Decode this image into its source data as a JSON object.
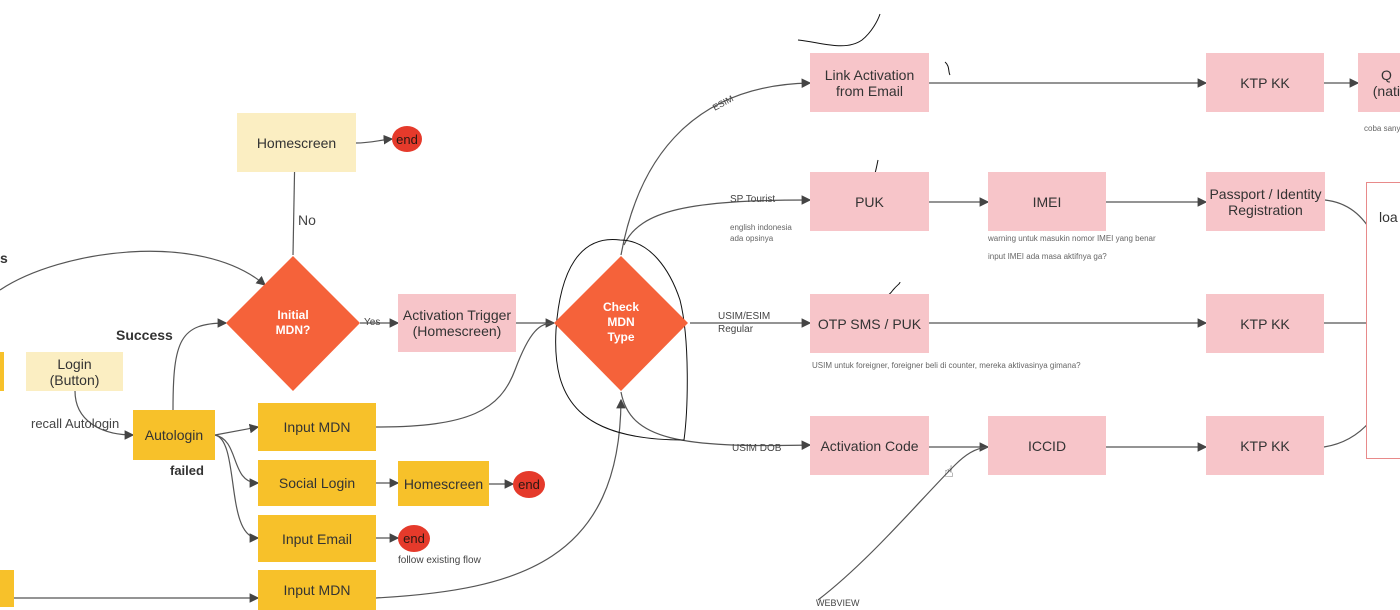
{
  "nodes": {
    "homescreen_top": "Homescreen",
    "login": "Login\n(Button)",
    "autologin": "Autologin",
    "input_mdn_1": "Input MDN",
    "social_login": "Social Login",
    "homescreen_social": "Homescreen",
    "input_email": "Input Email",
    "input_mdn_2": "Input MDN",
    "activation_trigger": "Activation Trigger\n(Homescreen)",
    "link_activation": "Link Activation\nfrom Email",
    "ktp_kk_1": "KTP KK",
    "q_partial": "Q\n(nati",
    "puk": "PUK",
    "imei": "IMEI",
    "passport": "Passport / Identity\nRegistration",
    "otp": "OTP SMS / PUK",
    "ktp_kk_2": "KTP KK",
    "activation_code": "Activation Code",
    "iccid": "ICCID",
    "ktp_kk_3": "KTP KK",
    "loa_partial": "loa"
  },
  "diamonds": {
    "initial_mdn": "Initial\nMDN?",
    "check_mdn": "Check\nMDN\nType"
  },
  "ends": {
    "end1": "end",
    "end2": "end",
    "end3": "end"
  },
  "labels": {
    "no": "No",
    "yes": "Yes",
    "success": "Success",
    "failed": "failed",
    "recall": "recall Autologin",
    "s_partial": "s",
    "esim": "ESIM",
    "sp_tourist": "SP Tourist",
    "usim_esim": "USIM/ESIM\nRegular",
    "usim_dob": "USIM DOB",
    "webview": "WEBVIEW",
    "follow": "follow existing flow"
  },
  "notes": {
    "english": "english indonesia\nada opsinya",
    "warning": "warning untuk masukin nomor IMEI yang benar",
    "input_imei": "input IMEI ada masa aktifnya ga?",
    "usim_note": "USIM untuk foreigner, foreigner beli di counter, mereka aktivasinya gimana?",
    "coba": "coba sany"
  },
  "colors": {
    "pink": "#f7c5c9",
    "cream": "#fbeec2",
    "yellow": "#f7c12a",
    "orange": "#f5623a",
    "end_red": "#e53a2b"
  }
}
